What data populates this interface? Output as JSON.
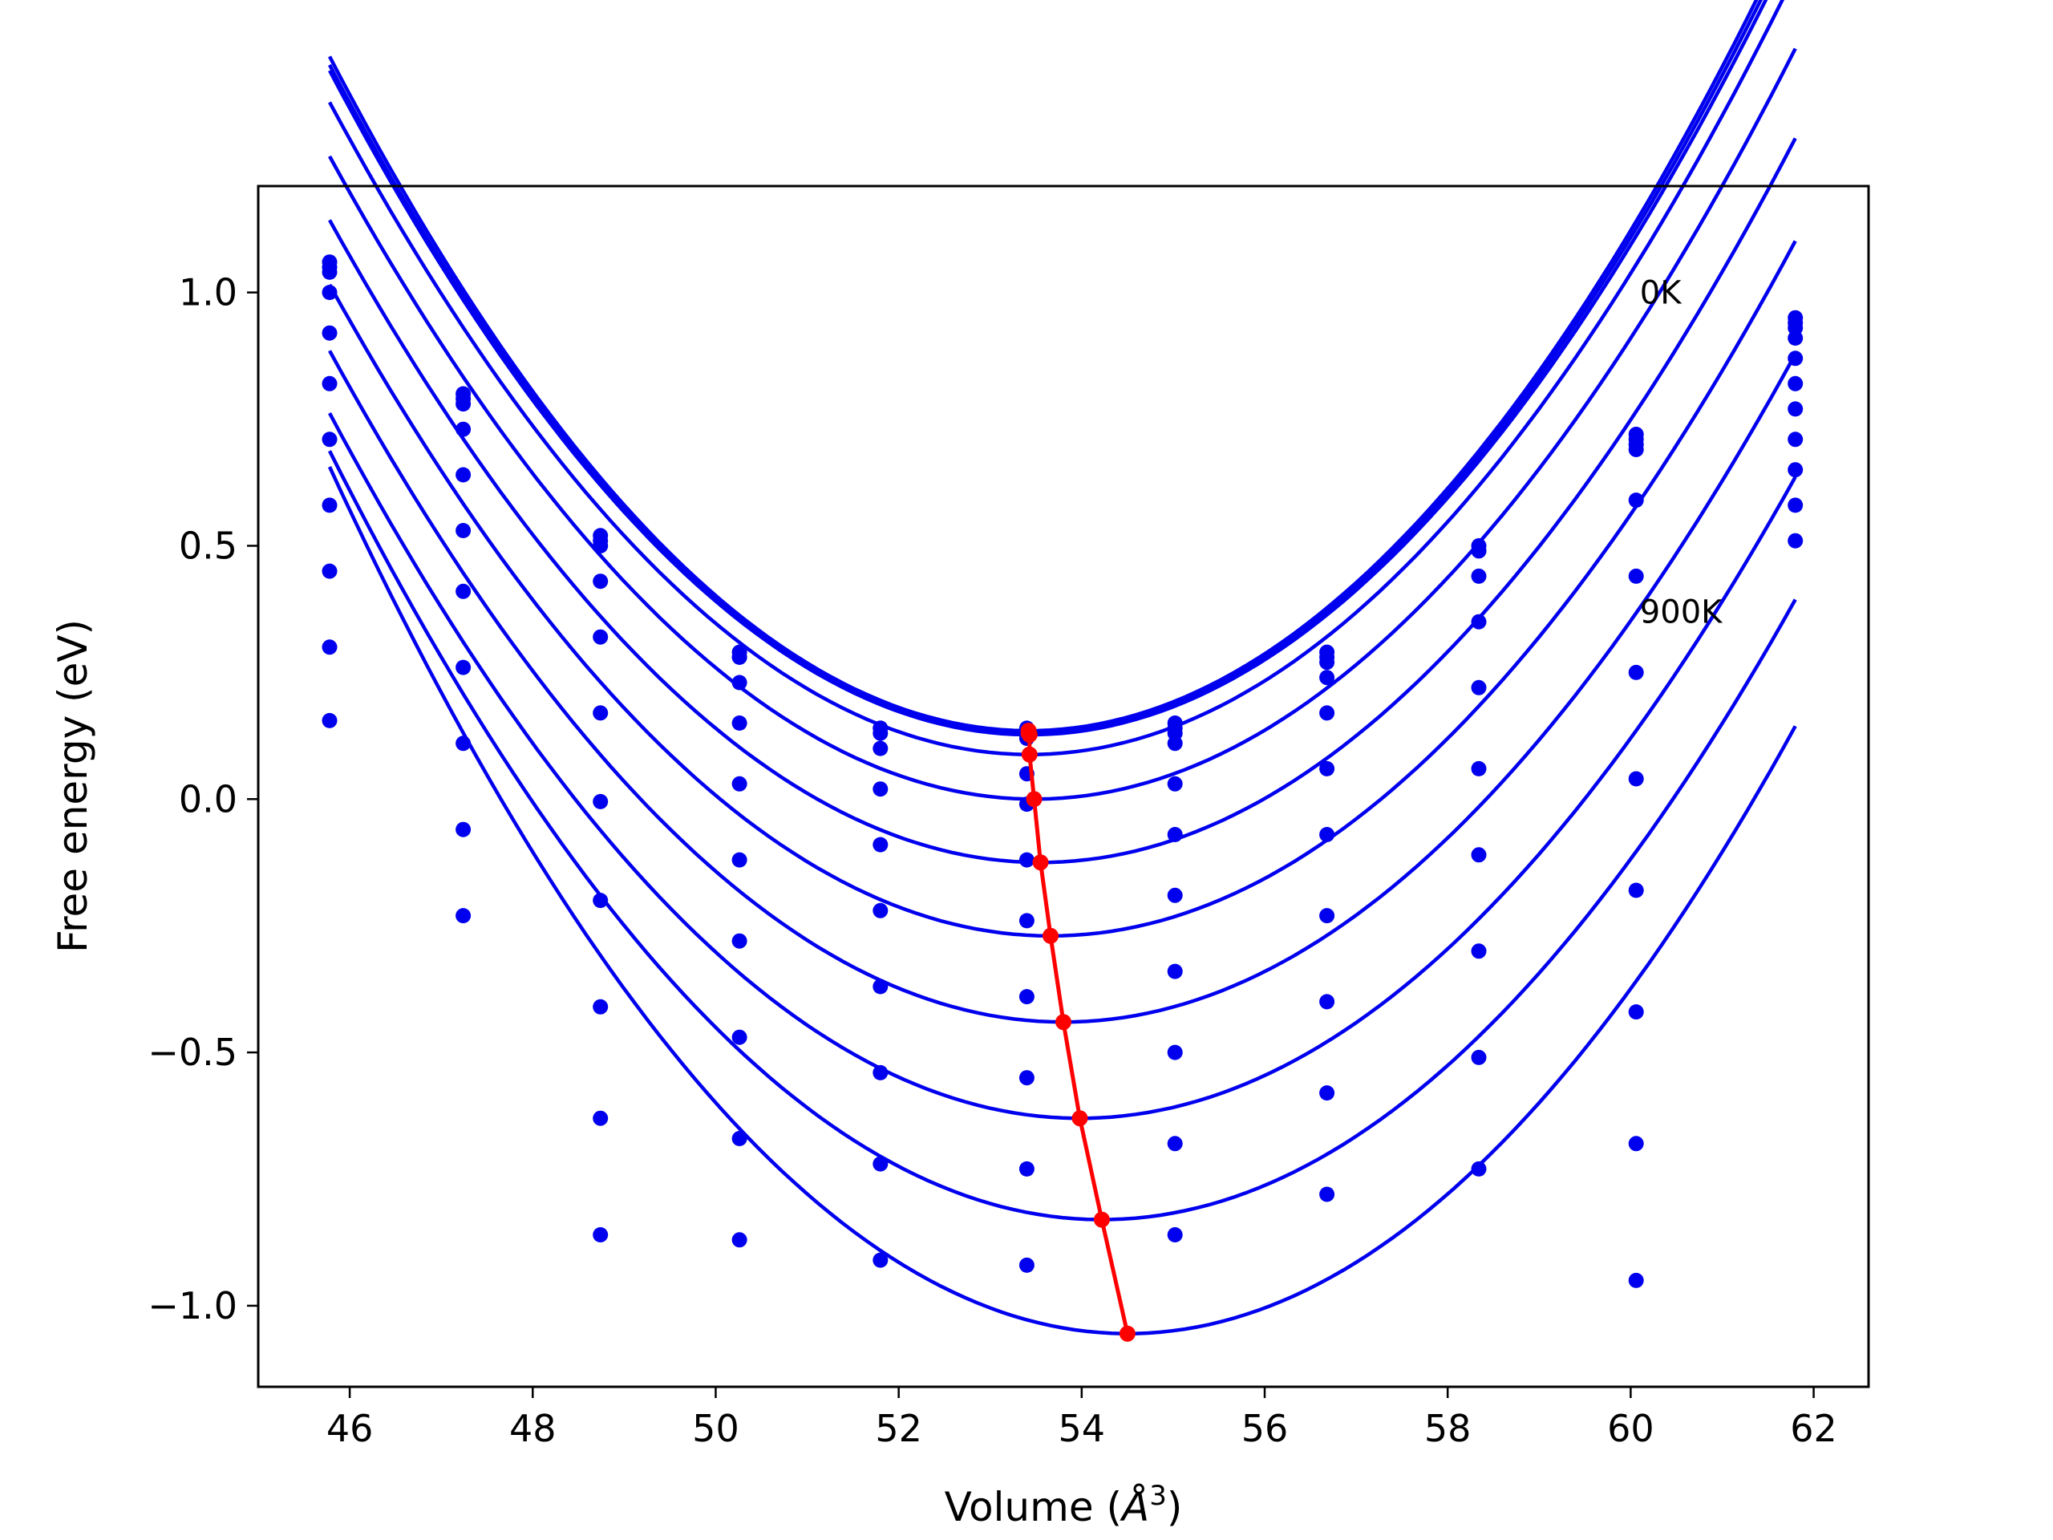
{
  "chart_data": {
    "type": "line",
    "title": "",
    "xlabel": "Volume (",
    "xlabel_symbol": "Å",
    "xlabel_exponent": "3",
    "xlabel_close": ")",
    "ylabel": "Free energy (eV)",
    "xlim": [
      45.0,
      62.6
    ],
    "ylim": [
      -1.16,
      1.21
    ],
    "xticks": [
      46,
      48,
      50,
      52,
      54,
      56,
      58,
      60,
      62
    ],
    "xtick_labels": [
      "46",
      "48",
      "50",
      "52",
      "54",
      "56",
      "58",
      "60",
      "62"
    ],
    "yticks": [
      1.0,
      0.5,
      0.0,
      -0.5,
      -1.0
    ],
    "ytick_labels": [
      "1.0",
      "0.5",
      "0.0",
      "−0.5",
      "−1.0"
    ],
    "grid": false,
    "colors": {
      "fit": "#0000ee",
      "points": "#0000ee",
      "minima": "#ff0000"
    },
    "annotations": [
      {
        "text": "0K",
        "x": 60.1,
        "y": 1.0
      },
      {
        "text": "900K",
        "x": 60.1,
        "y": 0.37
      }
    ],
    "volumes": [
      45.78,
      47.24,
      48.74,
      50.26,
      51.8,
      53.4,
      55.02,
      56.68,
      58.34,
      60.06,
      61.8
    ],
    "curve_range": [
      45.78,
      61.8
    ],
    "series": [
      {
        "points": [
          1.06,
          0.8,
          0.52,
          0.29,
          0.14,
          0.14,
          0.15,
          0.29,
          0.5,
          0.72,
          0.95
        ],
        "minimum": {
          "x": 53.42,
          "y": 0.135
        },
        "coef": 0.0228
      },
      {
        "points": [
          1.05,
          0.79,
          0.51,
          0.28,
          0.14,
          0.13,
          0.14,
          0.28,
          0.49,
          0.71,
          0.94
        ],
        "minimum": {
          "x": 53.42,
          "y": 0.13
        },
        "coef": 0.0226
      },
      {
        "points": [
          1.04,
          0.78,
          0.5,
          0.28,
          0.13,
          0.12,
          0.13,
          0.27,
          0.49,
          0.7,
          0.93
        ],
        "minimum": {
          "x": 53.43,
          "y": 0.127
        },
        "coef": 0.0224
      },
      {
        "points": [
          1.0,
          0.73,
          0.43,
          0.23,
          0.1,
          0.05,
          0.11,
          0.24,
          0.44,
          0.69,
          0.91
        ],
        "minimum": {
          "x": 53.43,
          "y": 0.088
        },
        "coef": 0.022
      },
      {
        "points": [
          0.92,
          0.64,
          0.32,
          0.15,
          0.02,
          -0.01,
          0.03,
          0.17,
          0.35,
          0.59,
          0.87
        ],
        "minimum": {
          "x": 53.48,
          "y": 0.0
        },
        "coef": 0.0214
      },
      {
        "points": [
          0.82,
          0.53,
          0.17,
          0.03,
          -0.09,
          -0.12,
          -0.07,
          0.06,
          0.22,
          0.44,
          0.82
        ],
        "minimum": {
          "x": 53.55,
          "y": -0.125
        },
        "coef": 0.021
      },
      {
        "points": [
          0.71,
          0.41,
          -0.005,
          -0.12,
          -0.22,
          -0.24,
          -0.19,
          -0.07,
          0.06,
          0.25,
          0.77
        ],
        "minimum": {
          "x": 53.66,
          "y": -0.27
        },
        "coef": 0.0207
      },
      {
        "points": [
          0.58,
          0.26,
          -0.2,
          -0.28,
          -0.37,
          -0.39,
          -0.34,
          -0.23,
          -0.11,
          0.04,
          0.71
        ],
        "minimum": {
          "x": 53.8,
          "y": -0.44
        },
        "coef": 0.0206
      },
      {
        "points": [
          0.45,
          0.11,
          -0.41,
          -0.47,
          -0.54,
          -0.55,
          -0.5,
          -0.4,
          -0.3,
          -0.18,
          0.65
        ],
        "minimum": {
          "x": 53.98,
          "y": -0.63
        },
        "coef": 0.0207
      },
      {
        "points": [
          0.3,
          -0.06,
          -0.63,
          -0.67,
          -0.72,
          -0.73,
          -0.68,
          -0.58,
          -0.51,
          -0.42,
          0.58
        ],
        "minimum": {
          "x": 54.22,
          "y": -0.83
        },
        "coef": 0.0213
      },
      {
        "points": [
          0.155,
          -0.23,
          -0.86,
          -0.87,
          -0.91,
          -0.92,
          -0.86,
          -0.78,
          -0.73,
          -0.68,
          0.51
        ],
        "minimum": {
          "x": 54.5,
          "y": -1.055
        },
        "coef": 0.0225
      }
    ],
    "extra_points": [
      {
        "x": 60.06,
        "y": -0.95
      }
    ]
  }
}
